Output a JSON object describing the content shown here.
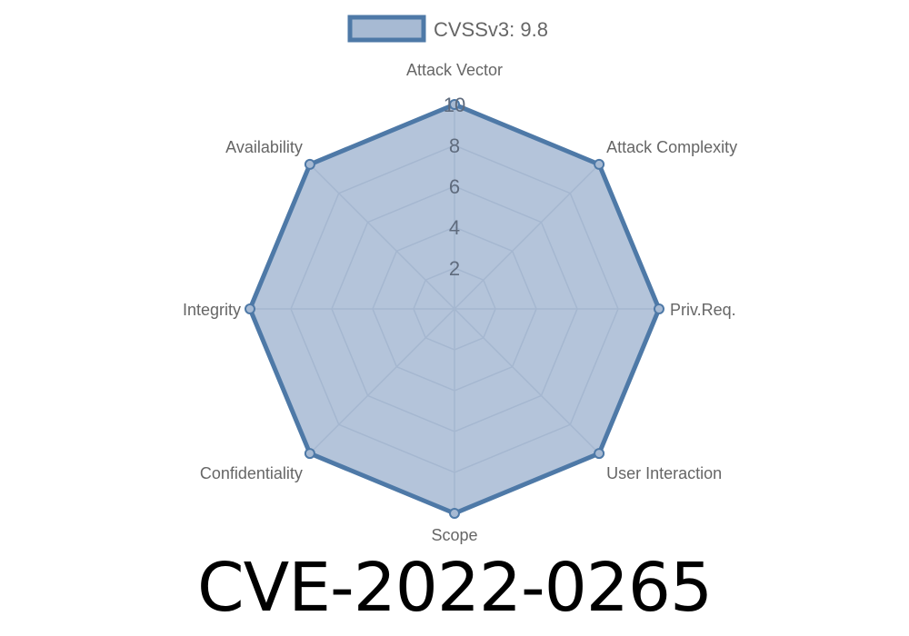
{
  "chart_data": {
    "type": "radar",
    "categories": [
      "Attack Vector",
      "Attack Complexity",
      "Priv.Req.",
      "User Interaction",
      "Scope",
      "Confidentiality",
      "Integrity",
      "Availability"
    ],
    "series": [
      {
        "name": "CVSSv3: 9.8",
        "values": [
          10,
          10,
          10,
          10,
          10,
          10,
          10,
          10
        ]
      }
    ],
    "rlim": [
      0,
      10
    ],
    "ticks": [
      "2",
      "4",
      "6",
      "8",
      "10"
    ],
    "grid": true,
    "legend": "top",
    "colors": {
      "line": "#4e79a7",
      "fill": "#a7bad3",
      "grid": "#98a6b8"
    }
  },
  "title": "CVE-2022-0265"
}
